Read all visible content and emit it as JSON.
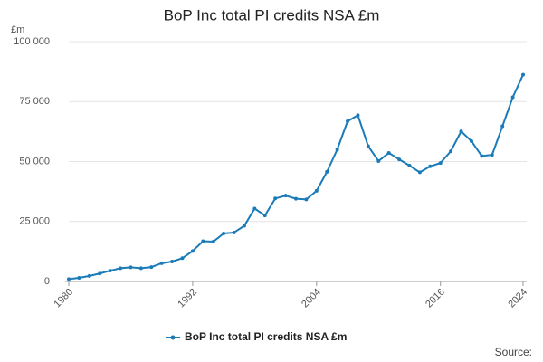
{
  "chart_data": {
    "type": "line",
    "title": "BoP Inc total PI credits NSA £m",
    "y_label": "£m",
    "source": "Source:",
    "x": [
      1980,
      1981,
      1982,
      1983,
      1984,
      1985,
      1986,
      1987,
      1988,
      1989,
      1990,
      1991,
      1992,
      1993,
      1994,
      1995,
      1996,
      1997,
      1998,
      1999,
      2000,
      2001,
      2002,
      2003,
      2004,
      2005,
      2006,
      2007,
      2008,
      2009,
      2010,
      2011,
      2012,
      2013,
      2014,
      2015,
      2016,
      2017,
      2018,
      2019,
      2020,
      2021,
      2022,
      2023,
      2024
    ],
    "series": [
      {
        "name": "BoP Inc total PI credits NSA £m",
        "color": "#1b7bb8",
        "values": [
          1000,
          1500,
          2300,
          3300,
          4500,
          5500,
          5900,
          5500,
          6000,
          7600,
          8300,
          9700,
          12700,
          16800,
          16600,
          20000,
          20400,
          23200,
          30400,
          27500,
          34600,
          35800,
          34500,
          34200,
          37800,
          45700,
          55000,
          66800,
          69300,
          56400,
          50200,
          53600,
          50900,
          48300,
          45500,
          48000,
          49400,
          54300,
          62600,
          58500,
          52300,
          52800,
          64700,
          76800,
          86200
        ]
      }
    ],
    "xlim": [
      1980,
      2024
    ],
    "xticks": [
      1980,
      1992,
      2004,
      2016,
      2024
    ],
    "ylim": [
      0,
      100000
    ],
    "yticks": [
      0,
      {
        "value": 25000,
        "label": "25 000"
      },
      {
        "value": 50000,
        "label": "50 000"
      },
      {
        "value": 75000,
        "label": "75 000"
      },
      {
        "value": 100000,
        "label": "100 000"
      }
    ],
    "grid": true
  }
}
